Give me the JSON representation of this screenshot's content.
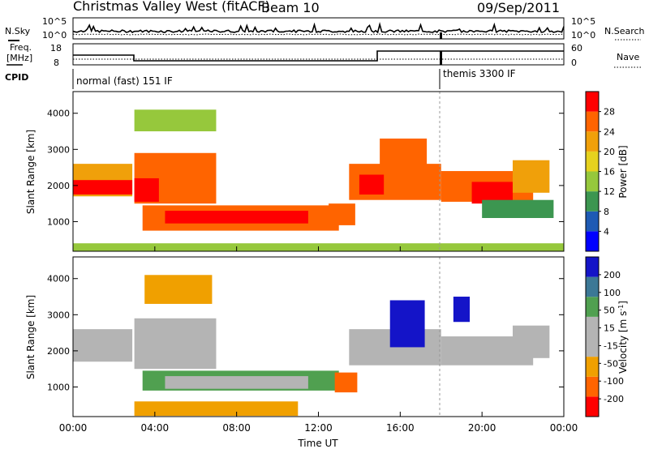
{
  "title": {
    "station": "Christmas Valley West (fitACF)",
    "beam": "Beam 10",
    "date": "09/Sep/2011"
  },
  "noise_panel": {
    "left_label": "N.Sky",
    "right_label": "N.Search",
    "left_ticks": [
      "10^5",
      "10^0"
    ],
    "right_ticks": [
      "10^5",
      "10^0"
    ]
  },
  "freq_panel": {
    "left_label_1": "Freq.",
    "left_label_2": "[MHz]",
    "right_label": "Nave",
    "left_ticks": [
      "18",
      "8"
    ],
    "right_ticks": [
      "60",
      "0"
    ]
  },
  "cpid": {
    "label": "CPID",
    "modes": [
      {
        "name": "normal (fast) 151 IF",
        "start_hour": 0,
        "end_hour": 18
      },
      {
        "name": "themis 3300 IF",
        "start_hour": 18,
        "end_hour": 24
      }
    ]
  },
  "x_axis": {
    "label": "Time UT",
    "ticks": [
      "00:00",
      "04:00",
      "08:00",
      "12:00",
      "16:00",
      "20:00",
      "00:00"
    ],
    "range_hours": [
      0,
      24
    ]
  },
  "range_panels": [
    {
      "ylabel": "Slant Range [km]",
      "yticks": [
        "1000",
        "2000",
        "3000",
        "4000"
      ],
      "cbar_label": "Power [dB]",
      "cbar_ticks": [
        "4",
        "8",
        "12",
        "16",
        "20",
        "24",
        "28"
      ]
    },
    {
      "ylabel": "Slant Range [km]",
      "yticks": [
        "1000",
        "2000",
        "3000",
        "4000"
      ],
      "cbar_label": "Velocity [m s",
      "cbar_label_sup": "-1",
      "cbar_label_end": "]",
      "cbar_ticks": [
        "200",
        "100",
        "50",
        "15",
        "-15",
        "-50",
        "-100",
        "-200"
      ]
    }
  ],
  "colors": {
    "power": [
      "#0000ff",
      "#1e5ab4",
      "#3c9650",
      "#96c83c",
      "#e6d21e",
      "#f0a00a",
      "#ff6400",
      "#ff0000"
    ],
    "velocity": [
      "#1414c8",
      "#3c7896",
      "#50a050",
      "#b4b4b4",
      "#b4b4b4",
      "#f0a000",
      "#ff6400",
      "#ff0000"
    ]
  },
  "chart_data": {
    "type": "heatmap",
    "title": "Christmas Valley West (fitACF)",
    "xlabel": "Time UT",
    "ylabel": "Slant Range [km]",
    "x_range_hours": [
      0,
      24
    ],
    "y_range_km": [
      180,
      4600
    ],
    "grid": false,
    "power_regions": [
      {
        "t0": 0.0,
        "t1": 2.9,
        "r0": 1700,
        "r1": 2600,
        "power_db": 22
      },
      {
        "t0": 0.0,
        "t1": 2.9,
        "r0": 1750,
        "r1": 2150,
        "power_db": 30
      },
      {
        "t0": 3.0,
        "t1": 7.0,
        "r0": 1500,
        "r1": 2900,
        "power_db": 26
      },
      {
        "t0": 3.0,
        "t1": 4.2,
        "r0": 1550,
        "r1": 2200,
        "power_db": 30
      },
      {
        "t0": 3.4,
        "t1": 13.0,
        "r0": 750,
        "r1": 1450,
        "power_db": 24
      },
      {
        "t0": 4.5,
        "t1": 11.5,
        "r0": 950,
        "r1": 1300,
        "power_db": 28
      },
      {
        "t0": 3.0,
        "t1": 7.0,
        "r0": 3500,
        "r1": 4100,
        "power_db": 14
      },
      {
        "t0": 12.5,
        "t1": 13.8,
        "r0": 900,
        "r1": 1500,
        "power_db": 26
      },
      {
        "t0": 13.5,
        "t1": 18.0,
        "r0": 1600,
        "r1": 2600,
        "power_db": 24
      },
      {
        "t0": 14.0,
        "t1": 15.2,
        "r0": 1750,
        "r1": 2300,
        "power_db": 30
      },
      {
        "t0": 15.0,
        "t1": 17.3,
        "r0": 2400,
        "r1": 3300,
        "power_db": 24
      },
      {
        "t0": 18.0,
        "t1": 22.5,
        "r0": 1550,
        "r1": 2400,
        "power_db": 26
      },
      {
        "t0": 19.5,
        "t1": 21.5,
        "r0": 1500,
        "r1": 2100,
        "power_db": 30
      },
      {
        "t0": 21.5,
        "t1": 23.3,
        "r0": 1800,
        "r1": 2700,
        "power_db": 20
      },
      {
        "t0": 20.0,
        "t1": 23.5,
        "r0": 1100,
        "r1": 1600,
        "power_db": 10
      },
      {
        "t0": 0.0,
        "t1": 24.0,
        "r0": 180,
        "r1": 400,
        "power_db": 12
      }
    ],
    "velocity_regions": [
      {
        "t0": 0.0,
        "t1": 2.9,
        "r0": 1700,
        "r1": 2600,
        "velocity": 0
      },
      {
        "t0": 3.0,
        "t1": 7.0,
        "r0": 1500,
        "r1": 2900,
        "velocity": 0
      },
      {
        "t0": 3.4,
        "t1": 13.0,
        "r0": 900,
        "r1": 1450,
        "velocity": 40
      },
      {
        "t0": 4.5,
        "t1": 11.5,
        "r0": 950,
        "r1": 1300,
        "velocity": 30
      },
      {
        "t0": 12.8,
        "t1": 13.9,
        "r0": 850,
        "r1": 1400,
        "velocity": -150
      },
      {
        "t0": 13.5,
        "t1": 18.0,
        "r0": 1600,
        "r1": 2600,
        "velocity": 0
      },
      {
        "t0": 15.5,
        "t1": 17.2,
        "r0": 2100,
        "r1": 3400,
        "velocity": 200
      },
      {
        "t0": 18.6,
        "t1": 19.4,
        "r0": 2800,
        "r1": 3500,
        "velocity": 200
      },
      {
        "t0": 18.0,
        "t1": 22.5,
        "r0": 1600,
        "r1": 2400,
        "velocity": 0
      },
      {
        "t0": 21.5,
        "t1": 23.3,
        "r0": 1800,
        "r1": 2700,
        "velocity": 0
      },
      {
        "t0": 3.0,
        "t1": 11.0,
        "r0": 200,
        "r1": 600,
        "velocity": -60
      },
      {
        "t0": 3.5,
        "t1": 6.8,
        "r0": 3300,
        "r1": 4100,
        "velocity": -40
      }
    ]
  }
}
